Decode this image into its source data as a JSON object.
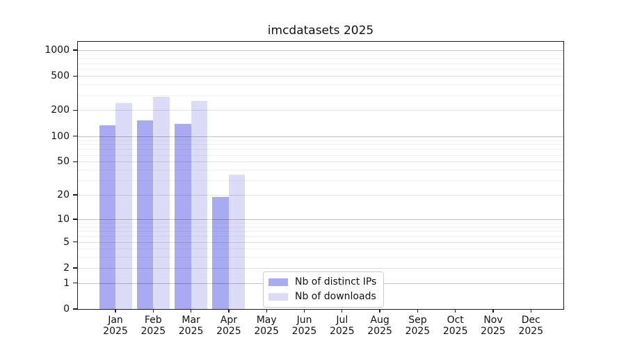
{
  "chart_data": {
    "type": "bar",
    "title": "imcdatasets 2025",
    "categories": [
      "Jan",
      "Feb",
      "Mar",
      "Apr",
      "May",
      "Jun",
      "Jul",
      "Aug",
      "Sep",
      "Oct",
      "Nov",
      "Dec"
    ],
    "category_year": "2025",
    "series": [
      {
        "name": "Nb of distinct IPs",
        "color": "#aaaaf2",
        "values": [
          134,
          152,
          138,
          19,
          0,
          0,
          0,
          0,
          0,
          0,
          0,
          0
        ]
      },
      {
        "name": "Nb of downloads",
        "color": "#dcdcf8",
        "values": [
          243,
          285,
          257,
          35,
          0,
          0,
          0,
          0,
          0,
          0,
          0,
          0
        ]
      }
    ],
    "y_ticks": [
      0,
      1,
      2,
      5,
      10,
      20,
      50,
      100,
      200,
      500,
      1000
    ],
    "y_scale": "log1p",
    "ylim": [
      0,
      1250
    ],
    "xlabel": "",
    "ylabel": "",
    "grid": "both",
    "legend_position": "lower-center"
  }
}
